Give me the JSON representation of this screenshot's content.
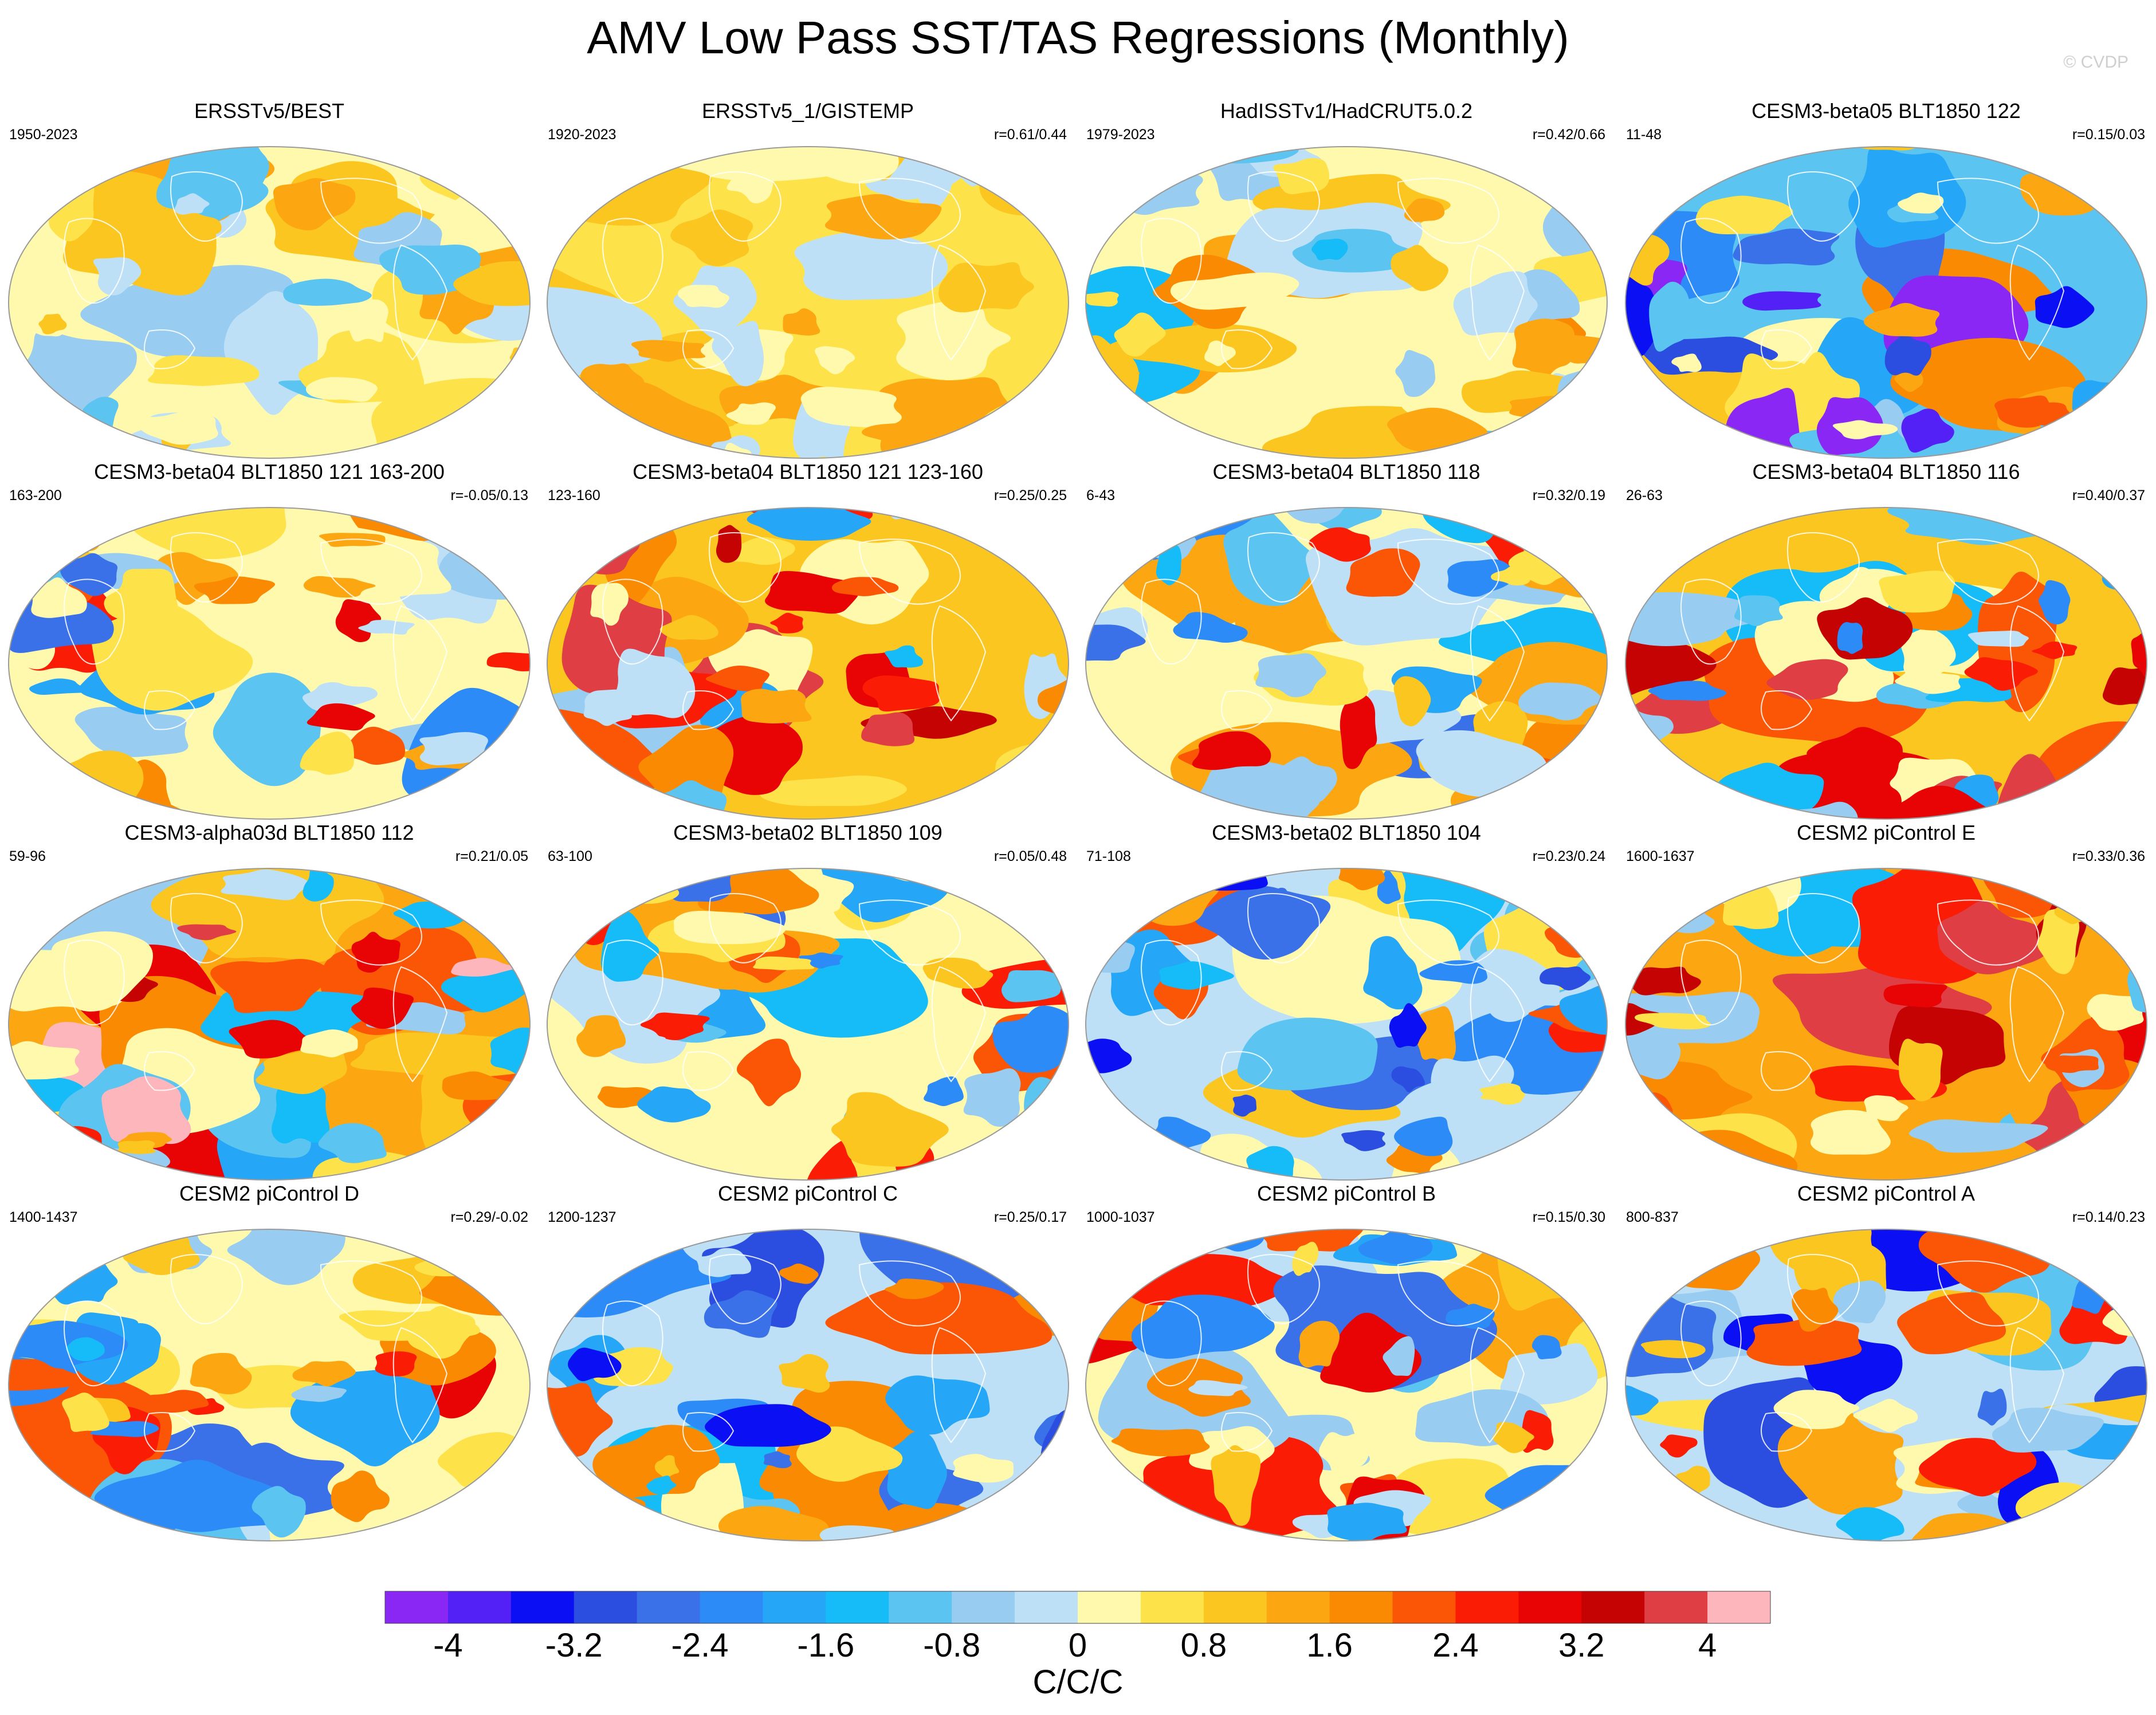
{
  "title": "AMV Low Pass SST/TAS Regressions (Monthly)",
  "watermark": "© CVDP",
  "panels": [
    {
      "title": "ERSSTv5/BEST",
      "years": "1950-2023",
      "corr": "",
      "pattern": "obs1"
    },
    {
      "title": "ERSSTv5_1/GISTEMP",
      "years": "1920-2023",
      "corr": "r=0.61/0.44",
      "pattern": "obs2"
    },
    {
      "title": "HadISSTv1/HadCRUT5.0.2",
      "years": "1979-2023",
      "corr": "r=0.42/0.66",
      "pattern": "obs3"
    },
    {
      "title": "CESM3-beta05 BLT1850 122",
      "years": "11-48",
      "corr": "r=0.15/0.03",
      "pattern": "cold"
    },
    {
      "title": "CESM3-beta04 BLT1850 121 163-200",
      "years": "163-200",
      "corr": "r=-0.05/0.13",
      "pattern": "mixed"
    },
    {
      "title": "CESM3-beta04 BLT1850 121 123-160",
      "years": "123-160",
      "corr": "r=0.25/0.25",
      "pattern": "warm"
    },
    {
      "title": "CESM3-beta04 BLT1850 118",
      "years": "6-43",
      "corr": "r=0.32/0.19",
      "pattern": "mixed"
    },
    {
      "title": "CESM3-beta04 BLT1850 116",
      "years": "26-63",
      "corr": "r=0.40/0.37",
      "pattern": "warm"
    },
    {
      "title": "CESM3-alpha03d BLT1850 112",
      "years": "59-96",
      "corr": "r=0.21/0.05",
      "pattern": "hot"
    },
    {
      "title": "CESM3-beta02 BLT1850 109",
      "years": "63-100",
      "corr": "r=0.05/0.48",
      "pattern": "mixed"
    },
    {
      "title": "CESM3-beta02 BLT1850 104",
      "years": "71-108",
      "corr": "r=0.23/0.24",
      "pattern": "cool"
    },
    {
      "title": "CESM2 piControl E",
      "years": "1600-1637",
      "corr": "r=0.33/0.36",
      "pattern": "hot"
    },
    {
      "title": "CESM2 piControl D",
      "years": "1400-1437",
      "corr": "r=0.29/-0.02",
      "pattern": "mixed"
    },
    {
      "title": "CESM2 piControl C",
      "years": "1200-1237",
      "corr": "r=0.25/0.17",
      "pattern": "cool"
    },
    {
      "title": "CESM2 piControl B",
      "years": "1000-1037",
      "corr": "r=0.15/0.30",
      "pattern": "mixed"
    },
    {
      "title": "CESM2 piControl A",
      "years": "800-837",
      "corr": "r=0.14/0.23",
      "pattern": "cool"
    }
  ],
  "colorbar": {
    "units": "C/C/C",
    "labels": [
      "-4",
      "-3.2",
      "-2.4",
      "-1.6",
      "-0.8",
      "0",
      "0.8",
      "1.6",
      "2.4",
      "3.2",
      "4"
    ],
    "colors": [
      "#8a27f5",
      "#5320f5",
      "#0b0ff4",
      "#2b4ee0",
      "#3a71e8",
      "#2d8bf7",
      "#25a6f7",
      "#16bcf7",
      "#5cc4f0",
      "#98ccf0",
      "#bde0f6",
      "#fff9ad",
      "#fde24a",
      "#fcc621",
      "#fca712",
      "#fb8a03",
      "#fb5506",
      "#fb1c06",
      "#e80405",
      "#c50303",
      "#de3e44",
      "#fdb6bb"
    ]
  }
}
